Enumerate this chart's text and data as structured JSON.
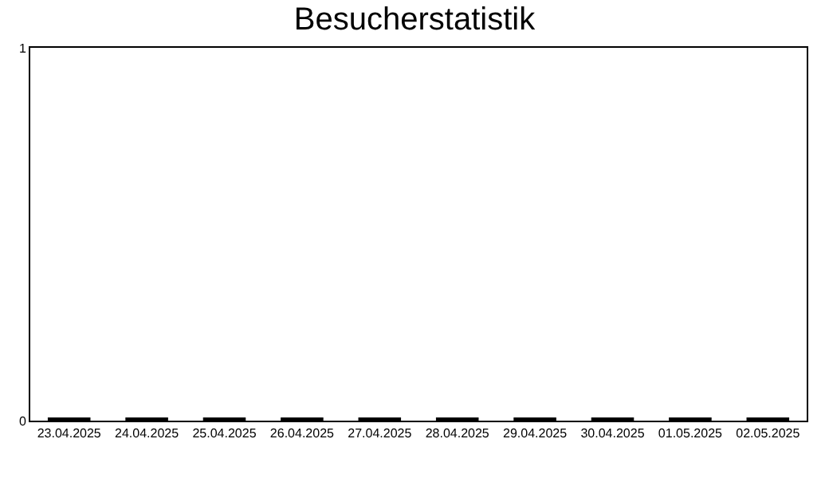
{
  "chart_data": {
    "type": "bar",
    "title": "Besucherstatistik",
    "categories": [
      "23.04.2025",
      "24.04.2025",
      "25.04.2025",
      "26.04.2025",
      "27.04.2025",
      "28.04.2025",
      "29.04.2025",
      "30.04.2025",
      "01.05.2025",
      "02.05.2025"
    ],
    "values": [
      0,
      0,
      0,
      0,
      0,
      0,
      0,
      0,
      0,
      0
    ],
    "color": "#000000",
    "ylim": [
      0,
      1
    ],
    "yticks": [
      0,
      1
    ]
  }
}
